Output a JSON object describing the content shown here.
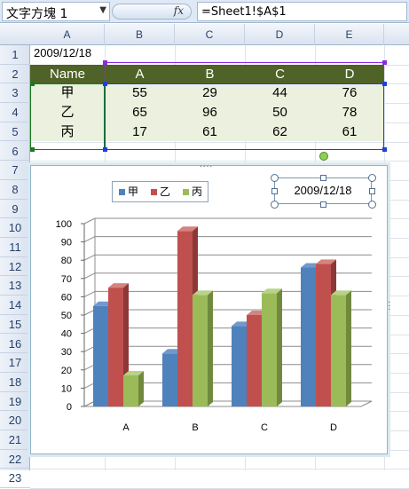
{
  "formula_bar": {
    "name_box": "文字方塊 1",
    "fx_label": "fx",
    "formula": "=Sheet1!$A$1"
  },
  "columns": [
    "A",
    "B",
    "C",
    "D",
    "E"
  ],
  "rows": [
    "1",
    "2",
    "3",
    "4",
    "5",
    "6",
    "7",
    "8",
    "9",
    "10",
    "11",
    "12",
    "13",
    "14",
    "15",
    "16",
    "17",
    "18",
    "19",
    "20",
    "21",
    "22",
    "23"
  ],
  "cells": {
    "a1": "2009/12/18",
    "header": [
      "Name",
      "A",
      "B",
      "C",
      "D"
    ],
    "data": [
      [
        "甲",
        "55",
        "29",
        "44",
        "76"
      ],
      [
        "乙",
        "65",
        "96",
        "50",
        "78"
      ],
      [
        "丙",
        "17",
        "61",
        "62",
        "61"
      ]
    ]
  },
  "colors": {
    "header_fill": "#4f6228",
    "data_fill": "#ebf1de",
    "series_1": "#4f81bd",
    "series_2": "#c0504d",
    "series_3": "#9bbb59"
  },
  "chart_textbox": "2009/12/18",
  "chart_data": {
    "type": "bar",
    "categories": [
      "A",
      "B",
      "C",
      "D"
    ],
    "series": [
      {
        "name": "甲",
        "values": [
          55,
          29,
          44,
          76
        ]
      },
      {
        "name": "乙",
        "values": [
          65,
          96,
          50,
          78
        ]
      },
      {
        "name": "丙",
        "values": [
          17,
          61,
          62,
          61
        ]
      }
    ],
    "y_ticks": [
      "0",
      "10",
      "20",
      "30",
      "40",
      "50",
      "60",
      "70",
      "80",
      "90",
      "100"
    ],
    "ylim": [
      0,
      100
    ],
    "legend_position": "top-left",
    "grid": true,
    "style": "3d-clustered-column"
  }
}
